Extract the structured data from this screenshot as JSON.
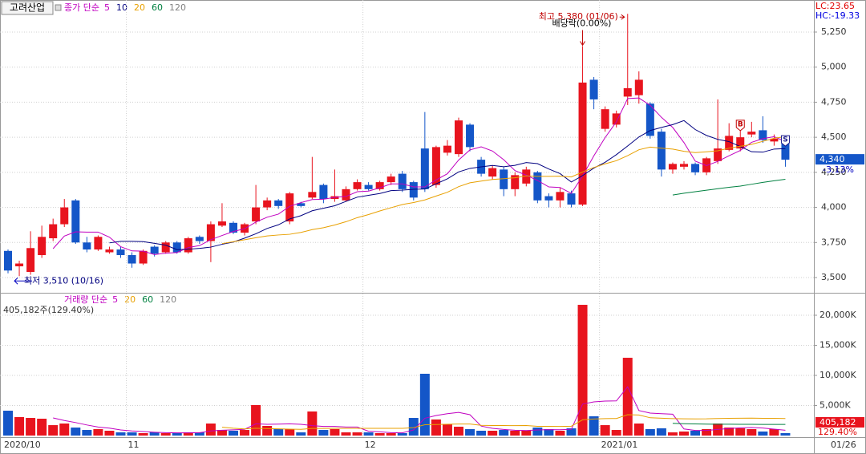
{
  "chart_data": [
    {
      "type": "candlestick",
      "stock_name": "고려산업",
      "ma_label": "종가 단순",
      "ma": [
        {
          "period": 5,
          "color": "#c000c0"
        },
        {
          "period": 10,
          "color": "#000080"
        },
        {
          "period": 20,
          "color": "#e8a000"
        },
        {
          "period": 60,
          "color": "#008040"
        },
        {
          "period": 120,
          "color": "#808080"
        }
      ],
      "open": [
        3690,
        3580,
        3540,
        3660,
        3780,
        3880,
        4050,
        3750,
        3700,
        3680,
        3700,
        3660,
        3600,
        3720,
        3680,
        3750,
        3680,
        3790,
        3760,
        3870,
        3890,
        3820,
        3900,
        4000,
        4050,
        3900,
        4030,
        4070,
        4160,
        4060,
        4050,
        4130,
        4160,
        4130,
        4180,
        4240,
        4180,
        4420,
        4160,
        4390,
        4380,
        4590,
        4340,
        4220,
        4270,
        4130,
        4170,
        4250,
        4080,
        4050,
        4100,
        4020,
        4910,
        4560,
        4590,
        4790,
        4800,
        4740,
        4540,
        4270,
        4290,
        4310,
        4250,
        4330,
        4410,
        4420,
        4520,
        4550,
        4470,
        4480
      ],
      "high": [
        3700,
        3620,
        3830,
        3870,
        3920,
        4060,
        4060,
        3790,
        3800,
        3720,
        3720,
        3680,
        3700,
        3730,
        3760,
        3760,
        3790,
        3800,
        3900,
        4030,
        3900,
        3890,
        4160,
        4070,
        4060,
        4110,
        4040,
        4360,
        4170,
        4270,
        4150,
        4200,
        4180,
        4190,
        4240,
        4260,
        4190,
        4680,
        4440,
        4480,
        4640,
        4600,
        4360,
        4300,
        4290,
        4250,
        4290,
        4260,
        4100,
        4140,
        4120,
        5150,
        4930,
        4720,
        4690,
        5380,
        4970,
        4750,
        4560,
        4320,
        4330,
        4320,
        4360,
        4770,
        4600,
        4610,
        4610,
        4650,
        4520,
        4500
      ],
      "low": [
        3530,
        3510,
        3520,
        3640,
        3760,
        3860,
        3740,
        3680,
        3690,
        3670,
        3640,
        3570,
        3590,
        3650,
        3670,
        3670,
        3670,
        3740,
        3610,
        3860,
        3810,
        3800,
        3880,
        3980,
        3990,
        3880,
        4000,
        4060,
        4030,
        4040,
        4040,
        4120,
        4120,
        4120,
        4160,
        4110,
        4050,
        4110,
        4140,
        4370,
        4360,
        4400,
        4220,
        4200,
        4080,
        4080,
        4150,
        4030,
        4000,
        4000,
        4000,
        4010,
        4700,
        4540,
        4570,
        4730,
        4740,
        4490,
        4220,
        4240,
        4270,
        4230,
        4230,
        4310,
        4400,
        4400,
        4500,
        4460,
        4440,
        4290
      ],
      "close": [
        3550,
        3600,
        3710,
        3790,
        3880,
        4000,
        3750,
        3700,
        3790,
        3700,
        3660,
        3600,
        3690,
        3670,
        3750,
        3680,
        3780,
        3760,
        3880,
        3900,
        3820,
        3880,
        4000,
        4050,
        4010,
        4100,
        4010,
        4110,
        4060,
        4080,
        4130,
        4180,
        4130,
        4180,
        4220,
        4130,
        4070,
        4130,
        4430,
        4440,
        4620,
        4430,
        4240,
        4280,
        4130,
        4230,
        4270,
        4050,
        4050,
        4110,
        4020,
        4890,
        4770,
        4700,
        4670,
        4850,
        4910,
        4510,
        4270,
        4310,
        4310,
        4250,
        4350,
        4420,
        4510,
        4500,
        4540,
        4480,
        4490,
        4340
      ],
      "up_color": "#e8141e",
      "down_color": "#1456c8",
      "ylim": [
        3400,
        5470
      ],
      "yticks": [
        {
          "value": 3500,
          "label": "3,500"
        },
        {
          "value": 3750,
          "label": "3,750"
        },
        {
          "value": 4000,
          "label": "4,000"
        },
        {
          "value": 4250,
          "label": "4,250"
        },
        {
          "value": 4500,
          "label": "4,500"
        },
        {
          "value": 4750,
          "label": "4,750"
        },
        {
          "value": 5000,
          "label": "5,000"
        },
        {
          "value": 5250,
          "label": "5,250"
        }
      ],
      "annotations": [
        {
          "text": "최고 5,380 (01/06)",
          "index": 55
        },
        {
          "text": "배당락(0.00%)",
          "index": 51
        },
        {
          "text": "최저 3,510 (10/16)",
          "index": 1
        }
      ],
      "signals": [
        {
          "label": "B",
          "index": 65
        },
        {
          "label": "S",
          "index": 69
        }
      ],
      "last_price": {
        "value": 4340,
        "label": "4,340"
      },
      "change": "-3.13%",
      "lc": "LC:23.65",
      "hc": "HC:-19.33"
    },
    {
      "type": "bar",
      "ma_label": "거래량 단순",
      "ma": [
        {
          "period": 5,
          "color": "#c000c0"
        },
        {
          "period": 20,
          "color": "#e8a000"
        },
        {
          "period": 60,
          "color": "#008040"
        },
        {
          "period": 120,
          "color": "#808080"
        }
      ],
      "summary": "405,182주(129.40%)",
      "categories": [
        "2020/10",
        null,
        null,
        null,
        null,
        null,
        null,
        null,
        null,
        null,
        null,
        "11",
        null,
        null,
        null,
        null,
        null,
        null,
        null,
        null,
        null,
        null,
        null,
        null,
        null,
        null,
        null,
        null,
        null,
        null,
        null,
        null,
        "12",
        null,
        null,
        null,
        null,
        null,
        null,
        null,
        null,
        null,
        null,
        null,
        null,
        null,
        null,
        null,
        null,
        null,
        null,
        null,
        null,
        "2021/01",
        null,
        null,
        null,
        null,
        null,
        null,
        null,
        null,
        null,
        null,
        null,
        null,
        null,
        null,
        null,
        "01/26"
      ],
      "values": [
        4130,
        3070,
        2930,
        2800,
        1730,
        2000,
        1330,
        930,
        1070,
        800,
        530,
        530,
        400,
        530,
        400,
        400,
        530,
        530,
        2000,
        930,
        800,
        930,
        5070,
        1600,
        1070,
        1070,
        530,
        4000,
        930,
        1070,
        530,
        530,
        530,
        400,
        400,
        400,
        2930,
        10270,
        2670,
        1870,
        1470,
        1070,
        800,
        800,
        930,
        800,
        800,
        1330,
        1070,
        800,
        1200,
        21730,
        3200,
        1730,
        930,
        12930,
        2000,
        1070,
        1200,
        530,
        670,
        800,
        1070,
        2000,
        1330,
        1200,
        1070,
        670,
        1070,
        405.182
      ],
      "ylim": [
        0,
        23000
      ],
      "yticks": [
        {
          "value": 5000,
          "label": "5,000K"
        },
        {
          "value": 10000,
          "label": "10,000K"
        },
        {
          "value": 15000,
          "label": "15,000K"
        },
        {
          "value": 20000,
          "label": "20,000K"
        }
      ],
      "last_value": {
        "value": 405.182,
        "label": "405,182"
      },
      "ratio": "129.40%"
    }
  ]
}
